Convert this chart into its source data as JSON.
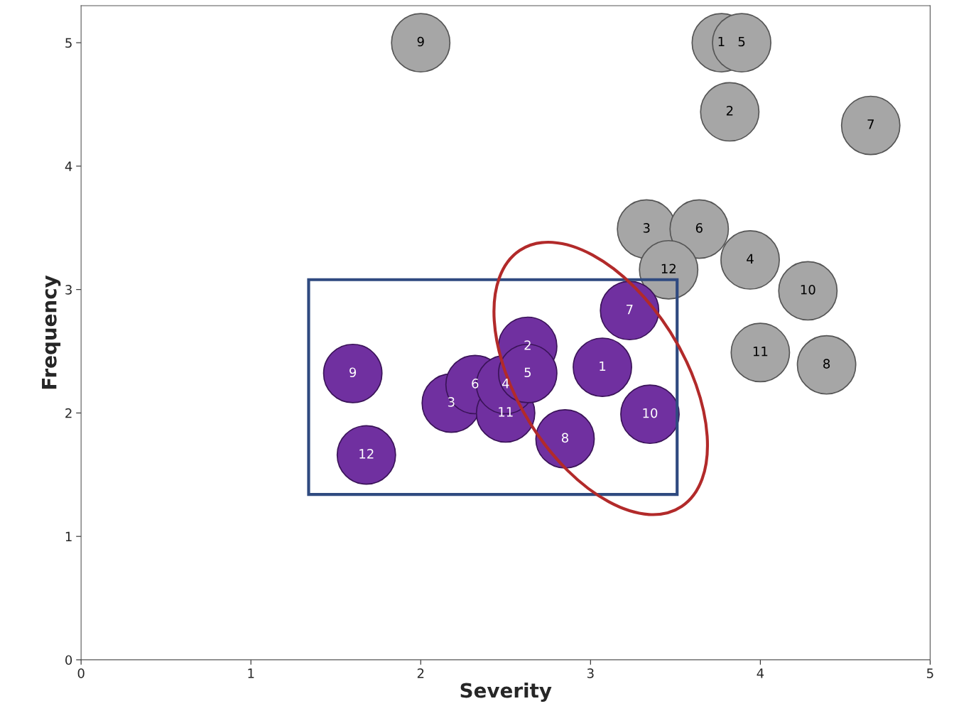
{
  "chart_data": {
    "type": "bubble",
    "xlabel": "Severity",
    "ylabel": "Frequency",
    "xlim": [
      0,
      5
    ],
    "ylim": [
      0,
      5.3
    ],
    "xticks": [
      0,
      1,
      2,
      3,
      4,
      5
    ],
    "yticks": [
      0,
      1,
      2,
      3,
      4,
      5
    ],
    "grid": false,
    "legend": false,
    "series": [
      {
        "color": "#a6a6a6",
        "x": [
          3.77,
          3.89,
          3.82,
          4.65,
          3.33,
          3.64,
          3.46,
          3.94,
          4.28,
          4.0,
          4.39,
          2.0
        ],
        "values": [
          5.0,
          5.0,
          4.44,
          4.33,
          3.49,
          3.49,
          3.16,
          3.24,
          2.99,
          2.49,
          2.39,
          5.0
        ],
        "sizes": [
          1,
          1,
          1,
          1,
          1,
          1,
          1,
          1,
          1,
          1,
          1,
          1
        ]
      },
      {
        "color": "#7030a0",
        "x": [
          1.6,
          1.68,
          2.18,
          2.32,
          2.5,
          2.5,
          2.63,
          2.63,
          2.85,
          3.07,
          3.23,
          3.35
        ],
        "values": [
          2.32,
          1.66,
          2.08,
          2.23,
          2.0,
          2.23,
          2.54,
          2.32,
          1.79,
          2.37,
          2.83,
          1.99
        ],
        "sizes": [
          1,
          1,
          1,
          1,
          1,
          1,
          1,
          1,
          1,
          1,
          1,
          1
        ]
      }
    ],
    "annotations": [
      {
        "text": "1",
        "x": 3.77,
        "y": 5.0
      },
      {
        "text": "5",
        "x": 3.89,
        "y": 5.0
      },
      {
        "text": "2",
        "x": 3.82,
        "y": 4.44
      },
      {
        "text": "7",
        "x": 4.65,
        "y": 4.33
      },
      {
        "text": "3",
        "x": 3.33,
        "y": 3.49
      },
      {
        "text": "6",
        "x": 3.64,
        "y": 3.49
      },
      {
        "text": "12",
        "x": 3.46,
        "y": 3.16
      },
      {
        "text": "4",
        "x": 3.94,
        "y": 3.24
      },
      {
        "text": "10",
        "x": 4.28,
        "y": 2.99
      },
      {
        "text": "11",
        "x": 4.0,
        "y": 2.49
      },
      {
        "text": "8",
        "x": 4.39,
        "y": 2.39
      },
      {
        "text": "9",
        "x": 2.0,
        "y": 5.0
      },
      {
        "text": "9",
        "x": 1.6,
        "y": 2.32
      },
      {
        "text": "12",
        "x": 1.68,
        "y": 1.66
      },
      {
        "text": "3",
        "x": 2.18,
        "y": 2.08
      },
      {
        "text": "6",
        "x": 2.32,
        "y": 2.23
      },
      {
        "text": "4",
        "x": 2.5,
        "y": 2.23
      },
      {
        "text": "11",
        "x": 2.5,
        "y": 2.0
      },
      {
        "text": "2",
        "x": 2.63,
        "y": 2.54
      },
      {
        "text": "5",
        "x": 2.63,
        "y": 2.32
      },
      {
        "text": "8",
        "x": 2.85,
        "y": 1.79
      },
      {
        "text": "1",
        "x": 3.07,
        "y": 2.37
      },
      {
        "text": "7",
        "x": 3.23,
        "y": 2.83
      },
      {
        "text": "10",
        "x": 3.35,
        "y": 1.99
      }
    ]
  }
}
